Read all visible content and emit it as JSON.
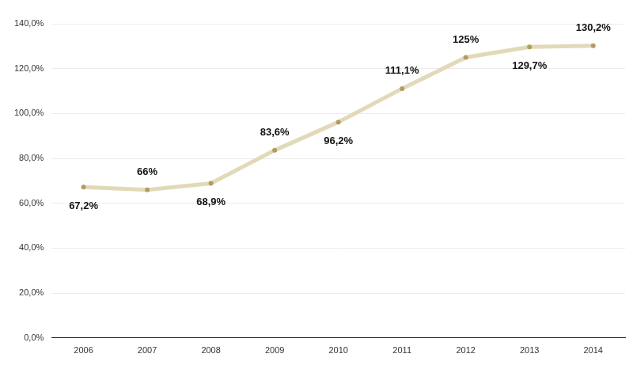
{
  "chart_data": {
    "type": "line",
    "categories": [
      "2006",
      "2007",
      "2008",
      "2009",
      "2010",
      "2011",
      "2012",
      "2013",
      "2014"
    ],
    "values": [
      67.2,
      66,
      68.9,
      83.6,
      96.2,
      111.1,
      125,
      129.7,
      130.2
    ],
    "value_labels": [
      "67,2%",
      "66%",
      "68,9%",
      "83,6%",
      "96,2%",
      "111,1%",
      "125%",
      "129,7%",
      "130,2%"
    ],
    "color": "#e2d9b9",
    "marker": "circle",
    "ylim": [
      0,
      140
    ],
    "yticks": [
      {
        "value": 0,
        "label": "0,0%"
      },
      {
        "value": 20,
        "label": "20,0%"
      },
      {
        "value": 40,
        "label": "40,0%"
      },
      {
        "value": 60,
        "label": "60,0%"
      },
      {
        "value": 80,
        "label": "80,0%"
      },
      {
        "value": 100,
        "label": "100,0%"
      },
      {
        "value": 120,
        "label": "120,0%"
      },
      {
        "value": 140,
        "label": "140,0%"
      }
    ],
    "grid": true,
    "data_labels": true
  }
}
